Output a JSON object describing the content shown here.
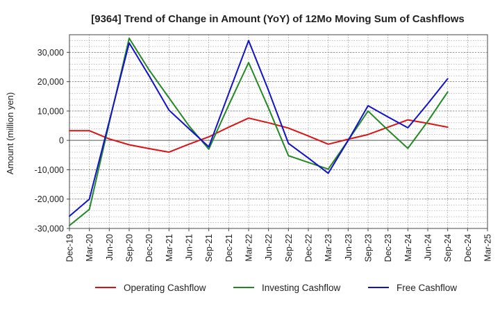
{
  "chart_data": {
    "type": "line",
    "title": "[9364]  Trend of Change in Amount (YoY) of 12Mo Moving Sum of Cashflows",
    "xlabel": "",
    "ylabel": "Amount (million yen)",
    "ylim": [
      -30000,
      36000
    ],
    "yticks": [
      -30000,
      -20000,
      -10000,
      0,
      10000,
      20000,
      30000
    ],
    "ytick_labels": [
      "-30,000",
      "-20,000",
      "-10,000",
      "0",
      "10,000",
      "20,000",
      "30,000"
    ],
    "categories": [
      "Dec-19",
      "Mar-20",
      "Jun-20",
      "Sep-20",
      "Dec-20",
      "Mar-21",
      "Jun-21",
      "Sep-21",
      "Dec-21",
      "Mar-22",
      "Jun-22",
      "Sep-22",
      "Dec-22",
      "Mar-23",
      "Jun-23",
      "Sep-23",
      "Dec-23",
      "Mar-24",
      "Jun-24",
      "Sep-24",
      "Dec-24",
      "Mar-25"
    ],
    "grid": true,
    "legend_position": "bottom",
    "series": [
      {
        "name": "Operating Cashflow",
        "color": "#dd1111",
        "values": [
          3300,
          3300,
          500,
          -1500,
          -2800,
          -4000,
          -1300,
          1200,
          4500,
          7600,
          6000,
          4200,
          1500,
          -1300,
          400,
          2000,
          4500,
          7000,
          5800,
          4500,
          null,
          null
        ]
      },
      {
        "name": "Investing Cashflow",
        "color": "#228822",
        "values": [
          -29000,
          -23500,
          6000,
          34800,
          24000,
          14500,
          5000,
          -3000,
          12000,
          26500,
          11000,
          -5200,
          -7500,
          -9800,
          0,
          10000,
          3500,
          -2700,
          6500,
          16500,
          null,
          null
        ]
      },
      {
        "name": "Free Cashflow",
        "color": "#1111cc",
        "values": [
          -25800,
          -20000,
          6500,
          33200,
          22000,
          10300,
          4000,
          -2200,
          16000,
          34000,
          17000,
          -1000,
          -6000,
          -11200,
          0,
          11800,
          8000,
          4300,
          12500,
          21000,
          null,
          null
        ]
      }
    ]
  }
}
